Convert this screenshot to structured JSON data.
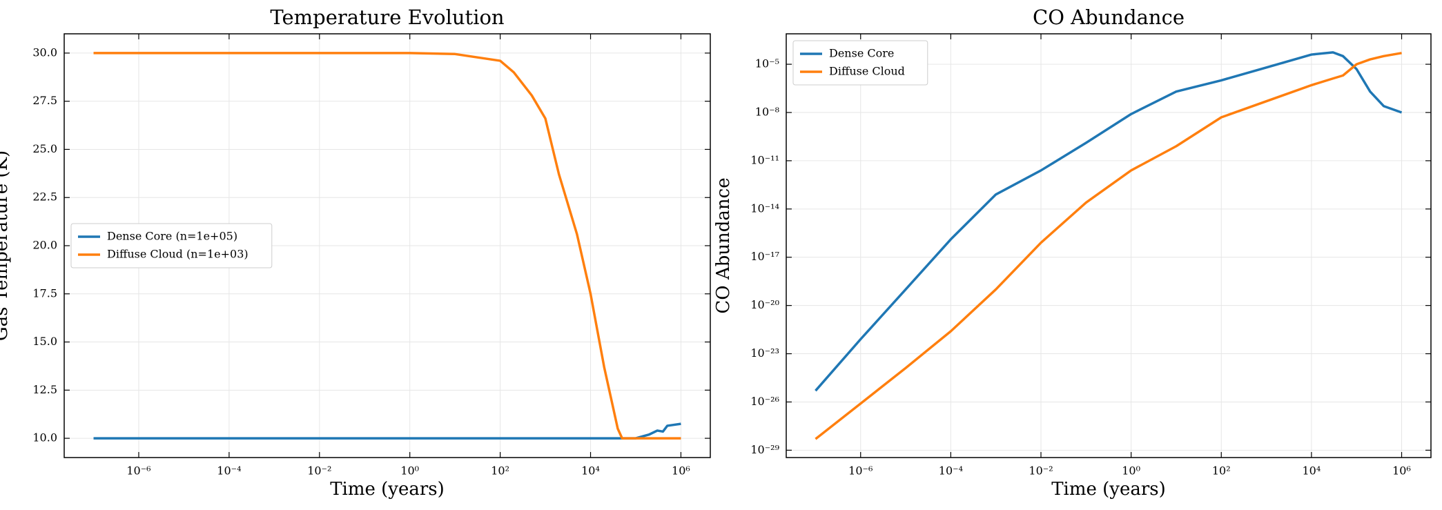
{
  "chart_data": [
    {
      "type": "line",
      "title": "Temperature Evolution",
      "x_label": "Time (years)",
      "y_label": "Gas Temperature (K)",
      "xscale": "log",
      "xlim": [
        2.24e-08,
        4470000.0
      ],
      "xticks": [
        {
          "value": 1e-06,
          "label": "10⁻⁶"
        },
        {
          "value": 0.0001,
          "label": "10⁻⁴"
        },
        {
          "value": 0.01,
          "label": "10⁻²"
        },
        {
          "value": 1,
          "label": "10⁰"
        },
        {
          "value": 100,
          "label": "10²"
        },
        {
          "value": 10000,
          "label": "10⁴"
        },
        {
          "value": 1000000,
          "label": "10⁶"
        }
      ],
      "ylim": [
        9,
        31
      ],
      "yticks": [
        {
          "value": 10,
          "label": "10.0"
        },
        12.5,
        {
          "value": 15,
          "label": "15.0"
        },
        17.5,
        {
          "value": 20,
          "label": "20.0"
        },
        22.5,
        {
          "value": 25,
          "label": "25.0"
        },
        27.5,
        {
          "value": 30,
          "label": "30.0"
        }
      ],
      "grid": true,
      "legend": "center left",
      "x": [
        1e-07,
        1e-06,
        1e-05,
        0.0001,
        0.001,
        0.01,
        0.1,
        1,
        10,
        100,
        200,
        500,
        1000,
        2000,
        5000,
        10000,
        20000,
        40000,
        50000,
        100000,
        200000,
        300000,
        400000,
        500000,
        700000,
        1000000
      ],
      "series": [
        {
          "name": "Dense Core (n=1e+05)",
          "color": "#1f77b4",
          "values": [
            10,
            10,
            10,
            10,
            10,
            10,
            10,
            10,
            10,
            10,
            10,
            10,
            10,
            10,
            10,
            10,
            10,
            10,
            10,
            10,
            10.2,
            10.4,
            10.35,
            10.65,
            10.7,
            10.75
          ]
        },
        {
          "name": "Diffuse Cloud (n=1e+03)",
          "color": "#ff7f0e",
          "values": [
            30,
            30,
            30,
            30,
            30,
            30,
            30,
            30,
            29.95,
            29.6,
            29.0,
            27.8,
            26.6,
            23.7,
            20.6,
            17.5,
            13.7,
            10.5,
            10.0,
            10,
            10,
            10,
            10,
            10,
            10,
            10
          ]
        }
      ]
    },
    {
      "type": "line",
      "title": "CO Abundance",
      "x_label": "Time (years)",
      "y_label": "CO Abundance",
      "xscale": "log",
      "yscale": "log",
      "xlim": [
        2.24e-08,
        4470000.0
      ],
      "xticks": [
        {
          "value": 1e-06,
          "label": "10⁻⁶"
        },
        {
          "value": 0.0001,
          "label": "10⁻⁴"
        },
        {
          "value": 0.01,
          "label": "10⁻²"
        },
        {
          "value": 1,
          "label": "10⁰"
        },
        {
          "value": 100,
          "label": "10²"
        },
        {
          "value": 10000,
          "label": "10⁴"
        },
        {
          "value": 1000000,
          "label": "10⁶"
        }
      ],
      "ylim": [
        3.5e-30,
        0.00078
      ],
      "yticks": [
        {
          "value": 1e-29,
          "label": "10⁻²⁹"
        },
        {
          "value": 1e-26,
          "label": "10⁻²⁶"
        },
        {
          "value": 1e-23,
          "label": "10⁻²³"
        },
        {
          "value": 1e-20,
          "label": "10⁻²⁰"
        },
        {
          "value": 1e-17,
          "label": "10⁻¹⁷"
        },
        {
          "value": 1e-14,
          "label": "10⁻¹⁴"
        },
        {
          "value": 1e-11,
          "label": "10⁻¹¹"
        },
        {
          "value": 1e-08,
          "label": "10⁻⁸"
        },
        {
          "value": 1e-05,
          "label": "10⁻⁵"
        }
      ],
      "grid": true,
      "legend": "upper left",
      "x": [
        1e-07,
        1e-06,
        1e-05,
        0.0001,
        0.001,
        0.01,
        0.1,
        1,
        10,
        100,
        1000,
        10000,
        30000,
        50000,
        100000,
        200000,
        400000,
        1000000
      ],
      "series": [
        {
          "name": "Dense Core",
          "color": "#1f77b4",
          "values": [
            5e-26,
            8e-23,
            1e-19,
            1.3e-16,
            8e-14,
            2.5e-12,
            1.3e-10,
            8e-09,
            2e-07,
            1e-06,
            6.3e-06,
            4e-05,
            5.5e-05,
            3.2e-05,
            5e-06,
            2e-07,
            2.5e-08,
            1e-08
          ]
        },
        {
          "name": "Diffuse Cloud",
          "color": "#ff7f0e",
          "values": [
            5e-29,
            8e-27,
            1.3e-24,
            2.5e-22,
            1e-19,
            8e-17,
            2.5e-14,
            2.5e-12,
            8e-11,
            5e-09,
            5e-08,
            5e-07,
            1.3e-06,
            2e-06,
            1e-05,
            2e-05,
            3.2e-05,
            5e-05
          ]
        }
      ]
    }
  ]
}
